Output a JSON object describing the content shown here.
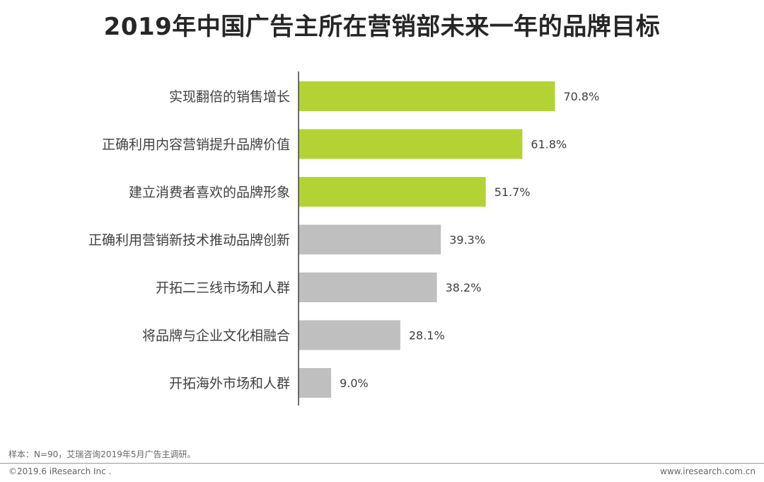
{
  "page": {
    "title": "2019年中国广告主所在营销部未来一年的品牌目标",
    "footnote": "样本：N=90，艾瑞咨询2019年5月广告主调研。",
    "copyright": "©2019.6 iResearch Inc .",
    "website": "www.iresearch.com.cn"
  },
  "colors": {
    "highlight": "#b3d334",
    "normal": "#bfbfbf",
    "axis": "#404040"
  },
  "chart_data": {
    "type": "bar",
    "orientation": "horizontal",
    "title": "2019年中国广告主所在营销部未来一年的品牌目标",
    "categories": [
      "实现翻倍的销售增长",
      "正确利用内容营销提升品牌价值",
      "建立消费者喜欢的品牌形象",
      "正确利用营销新技术推动品牌创新",
      "开拓二三线市场和人群",
      "将品牌与企业文化相融合",
      "开拓海外市场和人群"
    ],
    "values": [
      70.8,
      61.8,
      51.7,
      39.3,
      38.2,
      28.1,
      9.0
    ],
    "value_labels": [
      "70.8%",
      "61.8%",
      "51.7%",
      "39.3%",
      "38.2%",
      "28.1%",
      "9.0%"
    ],
    "highlighted": [
      true,
      true,
      true,
      false,
      false,
      false,
      false
    ],
    "unit": "%",
    "xlim": [
      0,
      100
    ],
    "grid": false,
    "legend": "none"
  }
}
